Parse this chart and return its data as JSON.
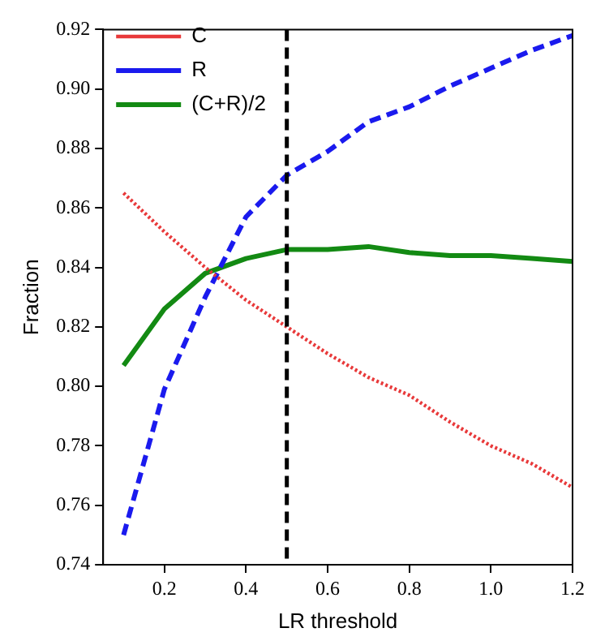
{
  "chart_data": {
    "type": "line",
    "xlabel": "LR threshold",
    "ylabel": "Fraction",
    "x": [
      0.1,
      0.2,
      0.3,
      0.4,
      0.5,
      0.6,
      0.7,
      0.8,
      0.9,
      1.0,
      1.1,
      1.2
    ],
    "series": [
      {
        "name": "C",
        "color": "#e8393a",
        "line_style": "dotted",
        "values": [
          0.865,
          0.852,
          0.84,
          0.829,
          0.82,
          0.811,
          0.803,
          0.797,
          0.788,
          0.78,
          0.774,
          0.766
        ]
      },
      {
        "name": "R",
        "color": "#1a1aee",
        "line_style": "dashed",
        "values": [
          0.75,
          0.799,
          0.83,
          0.857,
          0.871,
          0.879,
          0.889,
          0.894,
          0.901,
          0.907,
          0.913,
          0.918
        ]
      },
      {
        "name": "(C+R)/2",
        "color": "#138a13",
        "line_style": "solid",
        "values": [
          0.807,
          0.826,
          0.838,
          0.843,
          0.846,
          0.846,
          0.847,
          0.845,
          0.844,
          0.844,
          0.843,
          0.842
        ]
      }
    ],
    "xlim": [
      0.05,
      1.2
    ],
    "xticks": [
      0.2,
      0.4,
      0.6,
      0.8,
      {
        "value": 1.0,
        "label": "1.0"
      },
      1.2
    ],
    "ylim": [
      0.74,
      0.92
    ],
    "yticks": [
      0.74,
      0.76,
      0.78,
      {
        "value": 0.8,
        "label": "0.80"
      },
      0.82,
      0.84,
      0.86,
      0.88,
      {
        "value": 0.9,
        "label": "0.90"
      },
      0.92
    ],
    "ref_lines": [
      {
        "axis": "x",
        "value": 0.5,
        "color": "#000000",
        "line_style": "dashed"
      }
    ],
    "grid": false,
    "legend": "top left",
    "marker": "none"
  }
}
